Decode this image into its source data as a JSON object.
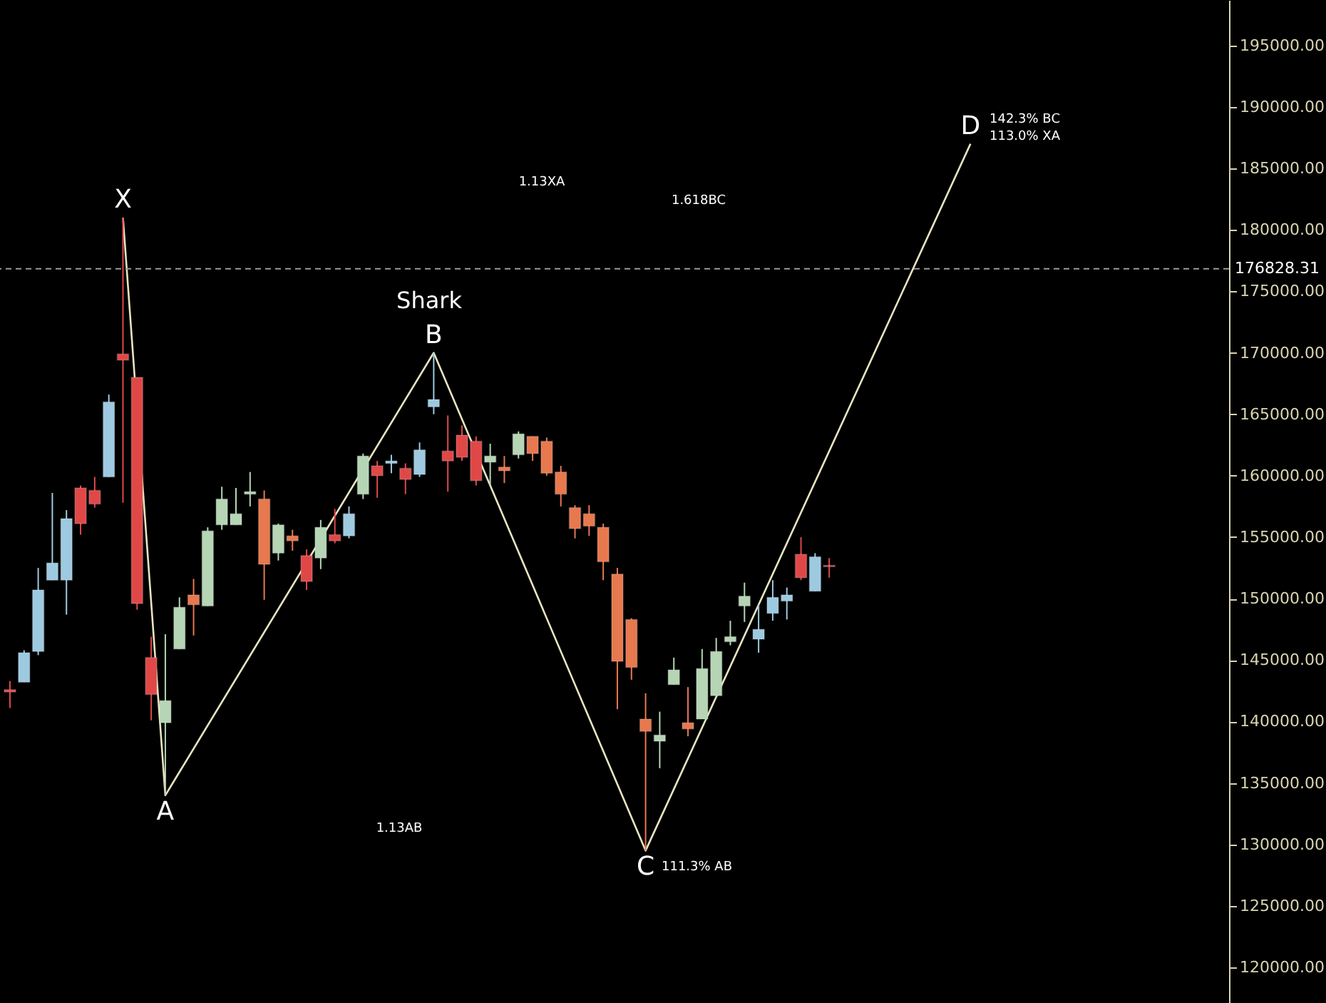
{
  "chart_data": {
    "type": "candlestick",
    "categories": [
      null,
      null,
      null,
      null,
      null,
      null,
      null,
      null,
      null,
      null,
      null,
      null,
      null,
      null,
      null,
      null,
      null,
      null,
      null,
      null,
      null,
      null,
      null,
      null,
      null,
      null,
      null,
      null,
      null,
      null,
      null,
      null,
      null,
      null,
      null,
      null,
      null,
      null,
      null,
      null,
      null,
      null,
      null,
      null,
      null,
      null,
      null,
      null,
      null,
      null,
      null,
      null,
      null,
      null,
      null,
      null,
      null,
      null,
      null,
      null,
      null,
      null,
      null,
      null,
      null,
      null,
      null,
      null,
      null,
      null,
      null,
      null,
      null,
      null,
      null,
      null,
      null,
      null,
      null,
      null,
      null,
      null,
      null,
      null,
      null,
      null
    ],
    "ohlc": [
      [
        142600,
        143300,
        141100,
        142400
      ],
      [
        143200,
        145800,
        143200,
        145600
      ],
      [
        145700,
        152500,
        145400,
        150700
      ],
      [
        151500,
        158600,
        151500,
        152900
      ],
      [
        151500,
        157200,
        148700,
        156500
      ],
      [
        159000,
        159200,
        155200,
        156100
      ],
      [
        158800,
        159900,
        157400,
        157700
      ],
      [
        159900,
        166600,
        159900,
        166000
      ],
      [
        169900,
        181000,
        157800,
        169400
      ],
      [
        168000,
        168000,
        149100,
        149600
      ],
      [
        145200,
        146900,
        140100,
        142200
      ],
      [
        139900,
        147100,
        134000,
        141700
      ],
      [
        145900,
        150100,
        145900,
        149300
      ],
      [
        150300,
        151600,
        147000,
        149500
      ],
      [
        149400,
        155800,
        149400,
        155500
      ],
      [
        156000,
        159100,
        155600,
        158100
      ],
      [
        156000,
        159000,
        156000,
        156900
      ],
      [
        158500,
        160300,
        157500,
        158700
      ],
      [
        158100,
        158800,
        149900,
        152800
      ],
      [
        153700,
        156100,
        153100,
        156000
      ],
      [
        155100,
        155600,
        153900,
        154700
      ],
      [
        153500,
        154000,
        150700,
        151400
      ],
      [
        153300,
        156400,
        152400,
        155800
      ],
      [
        155200,
        157300,
        154500,
        154700
      ],
      [
        155100,
        157500,
        154900,
        156900
      ],
      [
        158500,
        161800,
        158100,
        161600
      ],
      [
        160800,
        161200,
        158200,
        160000
      ],
      [
        161000,
        161700,
        160200,
        161200
      ],
      [
        160600,
        161000,
        158500,
        159700
      ],
      [
        160100,
        162700,
        159900,
        162100
      ],
      [
        165600,
        170000,
        165000,
        166200
      ],
      [
        162000,
        164900,
        158700,
        161200
      ],
      [
        163300,
        164100,
        161200,
        161500
      ],
      [
        162800,
        163200,
        159200,
        159600
      ],
      [
        161100,
        162600,
        159200,
        161600
      ],
      [
        160700,
        161600,
        159400,
        160400
      ],
      [
        161700,
        163600,
        161400,
        163400
      ],
      [
        163200,
        163200,
        161200,
        161800
      ],
      [
        162800,
        163100,
        160000,
        160200
      ],
      [
        160300,
        160800,
        157500,
        158500
      ],
      [
        157400,
        157600,
        154900,
        155700
      ],
      [
        156900,
        157600,
        155100,
        155900
      ],
      [
        155800,
        156100,
        151500,
        153000
      ],
      [
        152000,
        152500,
        141000,
        144900
      ],
      [
        148300,
        148400,
        143400,
        144400
      ],
      [
        140200,
        142300,
        129500,
        139200
      ],
      [
        138400,
        140800,
        136200,
        138900
      ],
      [
        143000,
        145200,
        143000,
        144200
      ],
      [
        139900,
        142800,
        138800,
        139400
      ],
      [
        140200,
        145900,
        140200,
        144300
      ],
      [
        142100,
        146800,
        142100,
        145700
      ],
      [
        146500,
        148200,
        146200,
        146900
      ],
      [
        149400,
        151300,
        148100,
        150200
      ],
      [
        146700,
        149500,
        145600,
        147500
      ],
      [
        148800,
        151500,
        148200,
        150100
      ],
      [
        149800,
        150900,
        148300,
        150300
      ],
      [
        153600,
        155000,
        151500,
        151700
      ],
      [
        150600,
        153700,
        150600,
        153400
      ],
      [
        152700,
        153300,
        151700,
        152600
      ],
      null,
      null,
      null,
      null,
      null,
      null,
      null,
      null,
      null,
      null,
      null,
      null,
      null,
      null,
      null,
      null,
      null,
      null,
      null,
      null,
      null,
      null,
      null,
      null,
      null,
      null,
      null
    ],
    "colors": [
      "#e04848",
      "#9ecae1",
      "#9ecae1",
      "#9ecae1",
      "#9ecae1",
      "#e04848",
      "#e04848",
      "#9ecae1",
      "#e04848",
      "#e04848",
      "#e04848",
      "#b5d5b5",
      "#b5d5b5",
      "#e8784e",
      "#b5d5b5",
      "#b5d5b5",
      "#b5d5b5",
      "#b5d5b5",
      "#e8784e",
      "#b5d5b5",
      "#e8784e",
      "#e04848",
      "#b5d5b5",
      "#e04848",
      "#9ecae1",
      "#b5d5b5",
      "#e04848",
      "#9ecae1",
      "#e04848",
      "#9ecae1",
      "#9ecae1",
      "#e04848",
      "#e04848",
      "#e04848",
      "#b5d5b5",
      "#e8784e",
      "#b5d5b5",
      "#e8784e",
      "#e8784e",
      "#e8784e",
      "#e8784e",
      "#e8784e",
      "#e8784e",
      "#e8784e",
      "#e8784e",
      "#e8784e",
      "#b5d5b5",
      "#b5d5b5",
      "#e8784e",
      "#b5d5b5",
      "#b5d5b5",
      "#b5d5b5",
      "#b5d5b5",
      "#9ecae1",
      "#9ecae1",
      "#9ecae1",
      "#e04848",
      "#9ecae1",
      "#e04848",
      null,
      null,
      null,
      null,
      null,
      null,
      null,
      null,
      null,
      null,
      null,
      null,
      null,
      null,
      null,
      null,
      null,
      null,
      null,
      null,
      null,
      null,
      null,
      null,
      null,
      null,
      null
    ],
    "series": [
      {
        "type": "line",
        "color": "#e8e4c0",
        "line_style": "solid",
        "marker": "none",
        "values": [
          null,
          null,
          null,
          null,
          null,
          null,
          null,
          null,
          181000,
          null,
          null,
          134000,
          null,
          null,
          null,
          null,
          null,
          null,
          null,
          null,
          null,
          null,
          null,
          null,
          null,
          null,
          null,
          null,
          null,
          null,
          170000,
          null,
          null,
          null,
          null,
          null,
          null,
          null,
          null,
          null,
          null,
          null,
          null,
          null,
          null,
          129500,
          null,
          null,
          null,
          null,
          null,
          null,
          null,
          null,
          null,
          null,
          null,
          null,
          null,
          null,
          null,
          null,
          null,
          null,
          null,
          null,
          null,
          null,
          187000,
          null,
          null,
          null,
          null,
          null,
          null,
          null,
          null,
          null,
          null,
          null,
          null,
          null,
          null,
          null,
          null,
          null
        ],
        "value_labels": [
          null,
          null,
          null,
          null,
          null,
          null,
          null,
          null,
          "X",
          null,
          null,
          "A",
          null,
          null,
          null,
          null,
          null,
          null,
          null,
          null,
          null,
          null,
          null,
          null,
          null,
          null,
          null,
          null,
          null,
          null,
          "B",
          null,
          null,
          null,
          null,
          null,
          null,
          null,
          null,
          null,
          null,
          null,
          null,
          null,
          null,
          "C",
          null,
          null,
          null,
          null,
          null,
          null,
          null,
          null,
          null,
          null,
          null,
          null,
          null,
          null,
          null,
          null,
          null,
          null,
          null,
          null,
          null,
          null,
          "D",
          null,
          null,
          null,
          null,
          null,
          null,
          null,
          null,
          null,
          null,
          null,
          null,
          null,
          null,
          null,
          null,
          null
        ]
      }
    ],
    "ylim": [
      117100,
      198700
    ],
    "yticks": [
      {
        "value": 120000,
        "label": "120000.00"
      },
      {
        "value": 125000,
        "label": "125000.00"
      },
      {
        "value": 130000,
        "label": "130000.00"
      },
      {
        "value": 135000,
        "label": "135000.00"
      },
      {
        "value": 140000,
        "label": "140000.00"
      },
      {
        "value": 145000,
        "label": "145000.00"
      },
      {
        "value": 150000,
        "label": "150000.00"
      },
      {
        "value": 155000,
        "label": "155000.00"
      },
      {
        "value": 160000,
        "label": "160000.00"
      },
      {
        "value": 165000,
        "label": "165000.00"
      },
      {
        "value": 170000,
        "label": "170000.00"
      },
      {
        "value": 175000,
        "label": "175000.00"
      },
      {
        "value": 180000,
        "label": "180000.00"
      },
      {
        "value": 185000,
        "label": "185000.00"
      },
      {
        "value": 190000,
        "label": "190000.00"
      },
      {
        "value": 195000,
        "label": "195000.00"
      }
    ],
    "ref_lines": [
      {
        "axis": "y",
        "value": 176828.31,
        "label": "176828.31",
        "color": "#9a9a9a",
        "line_style": "dashed"
      }
    ],
    "annotations": [
      "Shark",
      "1.13XA",
      "1.618BC",
      "1.13AB",
      "142.3% BC",
      "113.0% XA",
      "111.3% AB"
    ],
    "tick_labels": "y",
    "grid": false
  }
}
